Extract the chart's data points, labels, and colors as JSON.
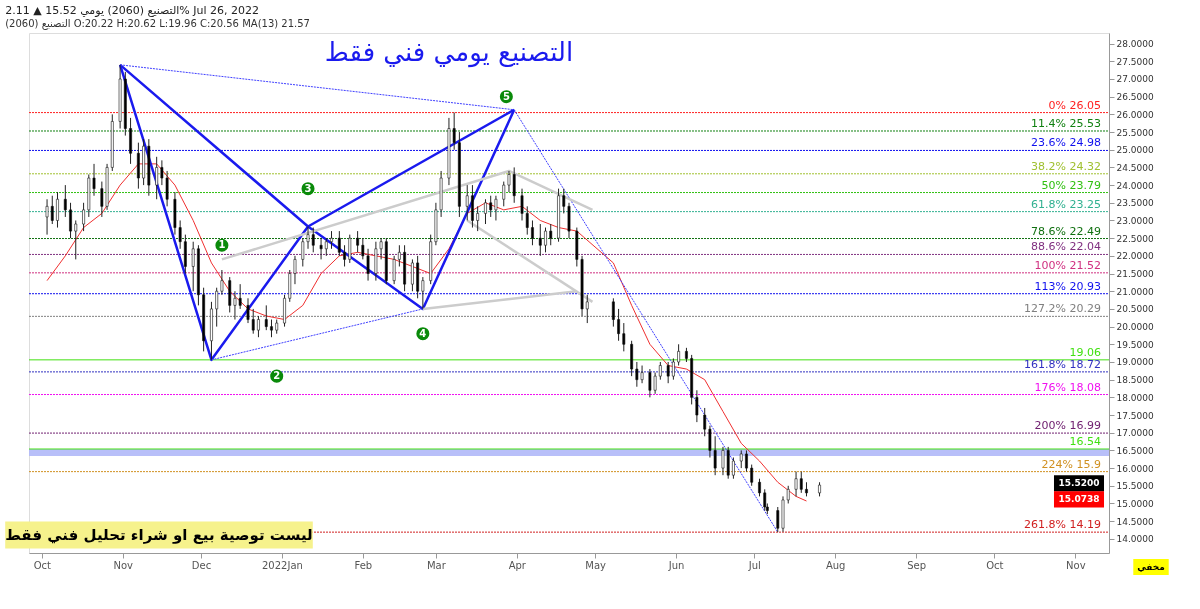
{
  "chart_data": {
    "type": "candlestick",
    "title": "التصنيع (2060) يومي 15.52 ▲ 2.11% Jul 26, 2022",
    "subtitle": "التصنيع (2060) O:20.22 H:20.62 L:19.96 C:20.56   MA(13) 21.57",
    "x": [
      "2021-10-03",
      "2021-10-05",
      "2021-10-07",
      "2021-10-10",
      "2021-10-12",
      "2021-10-14",
      "2021-10-17",
      "2021-10-19",
      "2021-10-21",
      "2021-10-24",
      "2021-10-26",
      "2021-10-28",
      "2021-10-31",
      "2021-11-02",
      "2021-11-04",
      "2021-11-07",
      "2021-11-09",
      "2021-11-11",
      "2021-11-14",
      "2021-11-16",
      "2021-11-18",
      "2021-11-21",
      "2021-11-23",
      "2021-11-25",
      "2021-11-28",
      "2021-11-30",
      "2021-12-02",
      "2021-12-05",
      "2021-12-07",
      "2021-12-09",
      "2021-12-12",
      "2021-12-14",
      "2021-12-16",
      "2021-12-19",
      "2021-12-21",
      "2021-12-23",
      "2021-12-26",
      "2021-12-28",
      "2021-12-30",
      "2022-01-02",
      "2022-01-04",
      "2022-01-06",
      "2022-01-09",
      "2022-01-11",
      "2022-01-13",
      "2022-01-16",
      "2022-01-18",
      "2022-01-20",
      "2022-01-23",
      "2022-01-25",
      "2022-01-27",
      "2022-01-30",
      "2022-02-01",
      "2022-02-03",
      "2022-02-06",
      "2022-02-08",
      "2022-02-10",
      "2022-02-13",
      "2022-02-15",
      "2022-02-17",
      "2022-02-20",
      "2022-02-22",
      "2022-02-24",
      "2022-02-27",
      "2022-03-01",
      "2022-03-03",
      "2022-03-06",
      "2022-03-08",
      "2022-03-10",
      "2022-03-13",
      "2022-03-15",
      "2022-03-17",
      "2022-03-20",
      "2022-03-22",
      "2022-03-24",
      "2022-03-27",
      "2022-03-29",
      "2022-03-31",
      "2022-04-03",
      "2022-04-05",
      "2022-04-07",
      "2022-04-10",
      "2022-04-12",
      "2022-04-14",
      "2022-04-17",
      "2022-04-19",
      "2022-04-21",
      "2022-04-24",
      "2022-04-26",
      "2022-04-28",
      "2022-05-08",
      "2022-05-10",
      "2022-05-12",
      "2022-05-15",
      "2022-05-17",
      "2022-05-19",
      "2022-05-22",
      "2022-05-24",
      "2022-05-26",
      "2022-05-29",
      "2022-05-31",
      "2022-06-02",
      "2022-06-05",
      "2022-06-07",
      "2022-06-09",
      "2022-06-12",
      "2022-06-14",
      "2022-06-16",
      "2022-06-19",
      "2022-06-21",
      "2022-06-23",
      "2022-06-26",
      "2022-06-28",
      "2022-06-30",
      "2022-07-03",
      "2022-07-05",
      "2022-07-06",
      "2022-07-10",
      "2022-07-12",
      "2022-07-14",
      "2022-07-17",
      "2022-07-19",
      "2022-07-21",
      "2022-07-26"
    ],
    "ohlc": [
      [
        23.1,
        23.6,
        22.6,
        23.4
      ],
      [
        23.4,
        23.7,
        22.9,
        23.0
      ],
      [
        23.0,
        23.8,
        22.8,
        23.6
      ],
      [
        23.6,
        24.0,
        23.1,
        23.3
      ],
      [
        23.3,
        23.5,
        22.5,
        22.7
      ],
      [
        22.7,
        23.0,
        21.9,
        22.9
      ],
      [
        22.9,
        23.5,
        22.7,
        23.3
      ],
      [
        23.3,
        24.3,
        23.1,
        24.2
      ],
      [
        24.2,
        24.6,
        23.7,
        23.9
      ],
      [
        23.9,
        24.1,
        23.1,
        23.4
      ],
      [
        23.4,
        24.6,
        23.3,
        24.5
      ],
      [
        24.5,
        26.0,
        24.4,
        25.8
      ],
      [
        25.8,
        27.4,
        25.6,
        27.0
      ],
      [
        27.0,
        27.2,
        25.4,
        25.6
      ],
      [
        25.6,
        25.9,
        24.6,
        24.9
      ],
      [
        24.9,
        25.2,
        23.9,
        24.2
      ],
      [
        24.2,
        25.3,
        24.0,
        25.1
      ],
      [
        25.1,
        25.3,
        23.7,
        24.0
      ],
      [
        24.0,
        24.8,
        23.6,
        24.5
      ],
      [
        24.5,
        24.7,
        24.0,
        24.2
      ],
      [
        24.2,
        24.4,
        23.4,
        23.6
      ],
      [
        23.6,
        23.8,
        22.6,
        22.8
      ],
      [
        22.8,
        23.0,
        22.2,
        22.4
      ],
      [
        22.4,
        22.6,
        21.5,
        21.7
      ],
      [
        21.7,
        22.4,
        21.0,
        22.2
      ],
      [
        22.2,
        22.3,
        20.6,
        20.9
      ],
      [
        20.9,
        21.1,
        19.3,
        19.6
      ],
      [
        19.6,
        20.7,
        19.06,
        20.5
      ],
      [
        20.5,
        21.1,
        20.0,
        21.0
      ],
      [
        21.0,
        21.6,
        20.9,
        21.3
      ],
      [
        21.3,
        21.4,
        20.4,
        20.6
      ],
      [
        20.6,
        21.0,
        20.2,
        20.8
      ],
      [
        20.8,
        21.2,
        20.5,
        20.6
      ],
      [
        20.6,
        20.8,
        20.1,
        20.2
      ],
      [
        20.2,
        20.5,
        19.8,
        19.9
      ],
      [
        19.9,
        20.3,
        19.7,
        20.2
      ],
      [
        20.2,
        20.6,
        19.9,
        20.0
      ],
      [
        20.0,
        20.2,
        19.7,
        19.9
      ],
      [
        19.9,
        20.2,
        19.8,
        20.1
      ],
      [
        20.1,
        20.9,
        20.0,
        20.8
      ],
      [
        20.8,
        21.6,
        20.7,
        21.5
      ],
      [
        21.5,
        22.0,
        21.2,
        21.9
      ],
      [
        21.9,
        22.5,
        21.7,
        22.4
      ],
      [
        22.4,
        22.83,
        22.2,
        22.6
      ],
      [
        22.6,
        22.8,
        22.1,
        22.3
      ],
      [
        22.3,
        22.5,
        21.9,
        22.2
      ],
      [
        22.2,
        22.5,
        22.0,
        22.4
      ],
      [
        22.4,
        22.7,
        22.2,
        22.5
      ],
      [
        22.5,
        22.7,
        22.0,
        22.1
      ],
      [
        22.1,
        22.3,
        21.7,
        21.9
      ],
      [
        21.9,
        22.6,
        21.8,
        22.5
      ],
      [
        22.5,
        22.7,
        22.1,
        22.3
      ],
      [
        22.3,
        22.5,
        21.9,
        22.0
      ],
      [
        22.0,
        22.2,
        21.3,
        21.5
      ],
      [
        21.5,
        22.4,
        21.3,
        22.2
      ],
      [
        22.2,
        22.5,
        21.9,
        22.4
      ],
      [
        22.4,
        22.5,
        21.2,
        21.3
      ],
      [
        21.3,
        22.0,
        21.2,
        21.9
      ],
      [
        21.9,
        22.3,
        21.7,
        22.1
      ],
      [
        22.1,
        22.3,
        21.0,
        21.2
      ],
      [
        21.2,
        21.9,
        21.0,
        21.8
      ],
      [
        21.8,
        22.0,
        20.8,
        21.0
      ],
      [
        21.0,
        21.4,
        20.5,
        21.3
      ],
      [
        21.3,
        22.6,
        21.2,
        22.4
      ],
      [
        22.4,
        23.5,
        22.3,
        23.3
      ],
      [
        23.3,
        24.4,
        23.1,
        24.2
      ],
      [
        24.2,
        25.9,
        24.0,
        25.6
      ],
      [
        25.6,
        26.05,
        25.0,
        25.2
      ],
      [
        25.2,
        25.5,
        23.1,
        23.4
      ],
      [
        23.4,
        24.0,
        23.0,
        23.7
      ],
      [
        23.7,
        24.0,
        22.8,
        23.0
      ],
      [
        23.0,
        23.4,
        22.7,
        23.2
      ],
      [
        23.2,
        23.6,
        22.9,
        23.5
      ],
      [
        23.5,
        23.7,
        23.1,
        23.3
      ],
      [
        23.3,
        23.7,
        23.0,
        23.6
      ],
      [
        23.6,
        24.1,
        23.4,
        24.0
      ],
      [
        24.0,
        24.4,
        23.8,
        24.3
      ],
      [
        24.3,
        24.5,
        23.5,
        23.7
      ],
      [
        23.7,
        23.9,
        23.0,
        23.2
      ],
      [
        23.2,
        23.4,
        22.6,
        22.8
      ],
      [
        22.8,
        23.0,
        22.3,
        22.5
      ],
      [
        22.5,
        22.9,
        22.0,
        22.3
      ],
      [
        22.3,
        22.8,
        22.1,
        22.7
      ],
      [
        22.7,
        22.9,
        22.3,
        22.5
      ],
      [
        22.5,
        23.9,
        22.4,
        23.7
      ],
      [
        23.7,
        23.9,
        23.2,
        23.4
      ],
      [
        23.4,
        23.5,
        22.5,
        22.7
      ],
      [
        22.7,
        22.8,
        21.7,
        21.9
      ],
      [
        21.9,
        22.0,
        20.3,
        20.5
      ],
      [
        20.5,
        20.9,
        20.1,
        20.7
      ],
      [
        20.7,
        20.8,
        20.0,
        20.2
      ],
      [
        20.2,
        20.5,
        19.6,
        19.8
      ],
      [
        19.8,
        20.1,
        19.3,
        19.5
      ],
      [
        19.5,
        19.6,
        18.6,
        18.8
      ],
      [
        18.8,
        19.0,
        18.3,
        18.5
      ],
      [
        18.5,
        18.9,
        18.4,
        18.7
      ],
      [
        18.7,
        18.8,
        18.0,
        18.2
      ],
      [
        18.2,
        18.7,
        18.1,
        18.6
      ],
      [
        18.6,
        19.0,
        18.5,
        18.9
      ],
      [
        18.9,
        19.0,
        18.4,
        18.6
      ],
      [
        18.6,
        19.1,
        18.5,
        19.0
      ],
      [
        19.0,
        19.5,
        18.9,
        19.3
      ],
      [
        19.3,
        19.4,
        19.0,
        19.1
      ],
      [
        19.1,
        19.2,
        17.8,
        18.0
      ],
      [
        18.0,
        18.2,
        17.3,
        17.5
      ],
      [
        17.5,
        17.7,
        16.9,
        17.1
      ],
      [
        17.1,
        17.2,
        16.3,
        16.5
      ],
      [
        16.5,
        16.9,
        15.8,
        16.0
      ],
      [
        16.0,
        16.6,
        15.8,
        16.5
      ],
      [
        16.5,
        16.6,
        15.7,
        15.8
      ],
      [
        15.8,
        16.3,
        15.7,
        16.2
      ],
      [
        16.2,
        16.5,
        16.0,
        16.4
      ],
      [
        16.4,
        16.5,
        15.9,
        16.0
      ],
      [
        16.0,
        16.1,
        15.5,
        15.6
      ],
      [
        15.6,
        15.7,
        15.2,
        15.3
      ],
      [
        15.3,
        15.4,
        14.8,
        14.9
      ],
      [
        14.9,
        15.0,
        14.7,
        14.8
      ],
      [
        14.8,
        14.9,
        14.19,
        14.3
      ],
      [
        14.3,
        15.2,
        14.2,
        15.1
      ],
      [
        15.1,
        15.5,
        15.0,
        15.4
      ],
      [
        15.4,
        15.9,
        15.2,
        15.7
      ],
      [
        15.7,
        15.9,
        15.3,
        15.4
      ],
      [
        15.4,
        15.6,
        15.2,
        15.3
      ],
      [
        15.3,
        15.6,
        15.2,
        15.52
      ]
    ],
    "series": [
      {
        "type": "line",
        "color": "#f03030",
        "x": [
          "2021-10-03",
          "2021-10-10",
          "2021-10-17",
          "2021-10-24",
          "2021-10-31",
          "2021-11-07",
          "2021-11-14",
          "2021-11-21",
          "2021-11-28",
          "2021-12-05",
          "2021-12-12",
          "2021-12-19",
          "2021-12-26",
          "2022-01-02",
          "2022-01-09",
          "2022-01-16",
          "2022-01-23",
          "2022-01-30",
          "2022-02-06",
          "2022-02-13",
          "2022-02-20",
          "2022-02-27",
          "2022-03-06",
          "2022-03-13",
          "2022-03-20",
          "2022-03-27",
          "2022-04-03",
          "2022-04-10",
          "2022-04-17",
          "2022-04-24",
          "2022-05-08",
          "2022-05-15",
          "2022-05-22",
          "2022-05-29",
          "2022-06-05",
          "2022-06-12",
          "2022-06-19",
          "2022-06-26",
          "2022-07-03",
          "2022-07-10",
          "2022-07-17",
          "2022-07-21"
        ],
        "values": [
          21.3,
          22.0,
          22.8,
          23.2,
          24.0,
          24.6,
          24.6,
          24.0,
          23.0,
          21.8,
          21.0,
          20.5,
          20.3,
          20.2,
          20.6,
          21.5,
          22.0,
          22.1,
          22.0,
          21.9,
          21.7,
          21.5,
          22.2,
          23.2,
          23.5,
          23.3,
          23.4,
          23.0,
          22.8,
          22.7,
          21.8,
          20.6,
          19.5,
          18.9,
          18.8,
          18.5,
          17.6,
          16.7,
          16.2,
          15.6,
          15.2,
          15.07
        ]
      },
      {
        "type": "line",
        "color": "#1a1aee",
        "line_style": "solid",
        "x": [
          "2021-10-31",
          "2021-12-05",
          "2022-01-11",
          "2022-02-24",
          "2022-03-31"
        ],
        "values": [
          27.4,
          19.06,
          22.83,
          20.5,
          26.13
        ]
      },
      {
        "type": "line",
        "color": "#1a1aee",
        "line_style": "solid",
        "x": [
          "2021-10-31",
          "2022-01-11",
          "2022-03-31"
        ],
        "values": [
          27.4,
          22.83,
          26.13
        ]
      },
      {
        "type": "line",
        "color": "#4040ff",
        "line_style": "dotted",
        "x": [
          "2021-10-31",
          "2022-03-31"
        ],
        "values": [
          27.4,
          26.13
        ]
      },
      {
        "type": "line",
        "color": "#4040ff",
        "line_style": "dotted",
        "x": [
          "2021-12-05",
          "2022-02-24"
        ],
        "values": [
          19.06,
          20.5
        ]
      },
      {
        "type": "line",
        "color": "#4040ff",
        "line_style": "dotted",
        "x": [
          "2022-03-31",
          "2022-07-10"
        ],
        "values": [
          26.13,
          14.19
        ]
      },
      {
        "type": "line",
        "color": "#cccccc",
        "line_style": "solid",
        "x": [
          "2021-12-09",
          "2022-03-29",
          "2022-04-30"
        ],
        "values": [
          21.9,
          24.4,
          23.3
        ]
      },
      {
        "type": "line",
        "color": "#cccccc",
        "line_style": "solid",
        "x": [
          "2022-03-13",
          "2022-04-30"
        ],
        "values": [
          23.0,
          20.7
        ]
      },
      {
        "type": "line",
        "color": "#cccccc",
        "line_style": "solid",
        "x": [
          "2022-02-24",
          "2022-04-24"
        ],
        "values": [
          20.5,
          21.0
        ]
      }
    ],
    "ref_lines": [
      {
        "axis": "y",
        "value": 26.05,
        "label": "0%  26.05",
        "color": "#ff2020",
        "line_style": "dotted"
      },
      {
        "axis": "y",
        "value": 25.53,
        "label": "11.4%  25.53",
        "color": "#108010",
        "line_style": "dotted"
      },
      {
        "axis": "y",
        "value": 24.98,
        "label": "23.6%  24.98",
        "color": "#1010ee",
        "line_style": "dotted"
      },
      {
        "axis": "y",
        "value": 24.32,
        "label": "38.2%  24.32",
        "color": "#a0c030",
        "line_style": "dotted"
      },
      {
        "axis": "y",
        "value": 23.79,
        "label": "50%  23.79",
        "color": "#30c010",
        "line_style": "dotted"
      },
      {
        "axis": "y",
        "value": 23.25,
        "label": "61.8%  23.25",
        "color": "#30b090",
        "line_style": "dotted"
      },
      {
        "axis": "y",
        "value": 22.49,
        "label": "78.6%  22.49",
        "color": "#107010",
        "line_style": "dotted"
      },
      {
        "axis": "y",
        "value": 22.04,
        "label": "88.6%  22.04",
        "color": "#803080",
        "line_style": "dotted"
      },
      {
        "axis": "y",
        "value": 21.52,
        "label": "100%  21.52",
        "color": "#d03080",
        "line_style": "dotted"
      },
      {
        "axis": "y",
        "value": 20.93,
        "label": "113%  20.93",
        "color": "#1010ee",
        "line_style": "dotted"
      },
      {
        "axis": "y",
        "value": 20.29,
        "label": "127.2%  20.29",
        "color": "#808080",
        "line_style": "dotted"
      },
      {
        "axis": "y",
        "value": 19.06,
        "label": "19.06",
        "color": "#40e010",
        "line_style": "solid"
      },
      {
        "axis": "y",
        "value": 18.72,
        "label": "161.8%  18.72",
        "color": "#3030c0",
        "line_style": "dotted"
      },
      {
        "axis": "y",
        "value": 18.08,
        "label": "176%  18.08",
        "color": "#f010f0",
        "line_style": "dotted"
      },
      {
        "axis": "y",
        "value": 16.99,
        "label": "200%  16.99",
        "color": "#702070",
        "line_style": "dotted"
      },
      {
        "axis": "y",
        "value": 16.54,
        "label": "16.54",
        "color": "#40e010",
        "line_style": "solid"
      },
      {
        "axis": "y",
        "value": 15.9,
        "label": "224%  15.9",
        "color": "#d09020",
        "line_style": "dotted"
      },
      {
        "axis": "y",
        "value": 14.19,
        "label": "261.8%  14.19",
        "color": "#d02020",
        "line_style": "dotted"
      }
    ],
    "bands": [
      {
        "axis": "y",
        "from": 16.34,
        "to": 16.54,
        "color": "#b0b8f8"
      }
    ],
    "annotations": [
      "التصنيع يومي فني فقط",
      "ليست توصية بيع او شراء تحليل فني فقط",
      "مخفي",
      {
        "text": "1",
        "x": "2021-12-09",
        "y": 22.3
      },
      {
        "text": "2",
        "x": "2021-12-30",
        "y": 18.6
      },
      {
        "text": "3",
        "x": "2022-01-11",
        "y": 23.9
      },
      {
        "text": "4",
        "x": "2022-02-24",
        "y": 19.8
      },
      {
        "text": "5",
        "x": "2022-03-28",
        "y": 26.5
      },
      "15.5200",
      "15.0738"
    ],
    "xlim": [
      "2021-09-28",
      "2022-11-12"
    ],
    "xticks": [
      {
        "value": "2021-10-01",
        "label": "Oct"
      },
      {
        "value": "2021-11-01",
        "label": "Nov"
      },
      {
        "value": "2021-12-01",
        "label": "Dec"
      },
      {
        "value": "2022-01-01",
        "label": "2022Jan"
      },
      {
        "value": "2022-02-01",
        "label": "Feb"
      },
      {
        "value": "2022-03-01",
        "label": "Mar"
      },
      {
        "value": "2022-04-01",
        "label": "Apr"
      },
      {
        "value": "2022-05-01",
        "label": "May"
      },
      {
        "value": "2022-06-01",
        "label": "Jun"
      },
      {
        "value": "2022-07-01",
        "label": "Jul"
      },
      {
        "value": "2022-08-01",
        "label": "Aug"
      },
      {
        "value": "2022-09-01",
        "label": "Sep"
      },
      {
        "value": "2022-10-01",
        "label": "Oct"
      },
      {
        "value": "2022-11-01",
        "label": "Nov"
      }
    ],
    "ylim": [
      13.6,
      28.3
    ],
    "yticks": [
      {
        "value": 14,
        "label": "14.0000"
      },
      {
        "value": 14.5,
        "label": "14.5000"
      },
      {
        "value": 15,
        "label": "15.0000"
      },
      {
        "value": 15.5,
        "label": "15.5000"
      },
      {
        "value": 16,
        "label": "16.0000"
      },
      {
        "value": 16.5,
        "label": "16.5000"
      },
      {
        "value": 17,
        "label": "17.0000"
      },
      {
        "value": 17.5,
        "label": "17.5000"
      },
      {
        "value": 18,
        "label": "18.0000"
      },
      {
        "value": 18.5,
        "label": "18.5000"
      },
      {
        "value": 19,
        "label": "19.0000"
      },
      {
        "value": 19.5,
        "label": "19.5000"
      },
      {
        "value": 20,
        "label": "20.0000"
      },
      {
        "value": 20.5,
        "label": "20.5000"
      },
      {
        "value": 21,
        "label": "21.0000"
      },
      {
        "value": 21.5,
        "label": "21.5000"
      },
      {
        "value": 22,
        "label": "22.0000"
      },
      {
        "value": 22.5,
        "label": "22.5000"
      },
      {
        "value": 23,
        "label": "23.0000"
      },
      {
        "value": 23.5,
        "label": "23.5000"
      },
      {
        "value": 24,
        "label": "24.0000"
      },
      {
        "value": 24.5,
        "label": "24.5000"
      },
      {
        "value": 25,
        "label": "25.0000"
      },
      {
        "value": 25.5,
        "label": "25.5000"
      },
      {
        "value": 26,
        "label": "26.0000"
      },
      {
        "value": 26.5,
        "label": "26.5000"
      },
      {
        "value": 27,
        "label": "27.0000"
      },
      {
        "value": 27.5,
        "label": "27.5000"
      },
      {
        "value": 28,
        "label": "28.0000"
      }
    ],
    "grid": false,
    "legend": false
  }
}
